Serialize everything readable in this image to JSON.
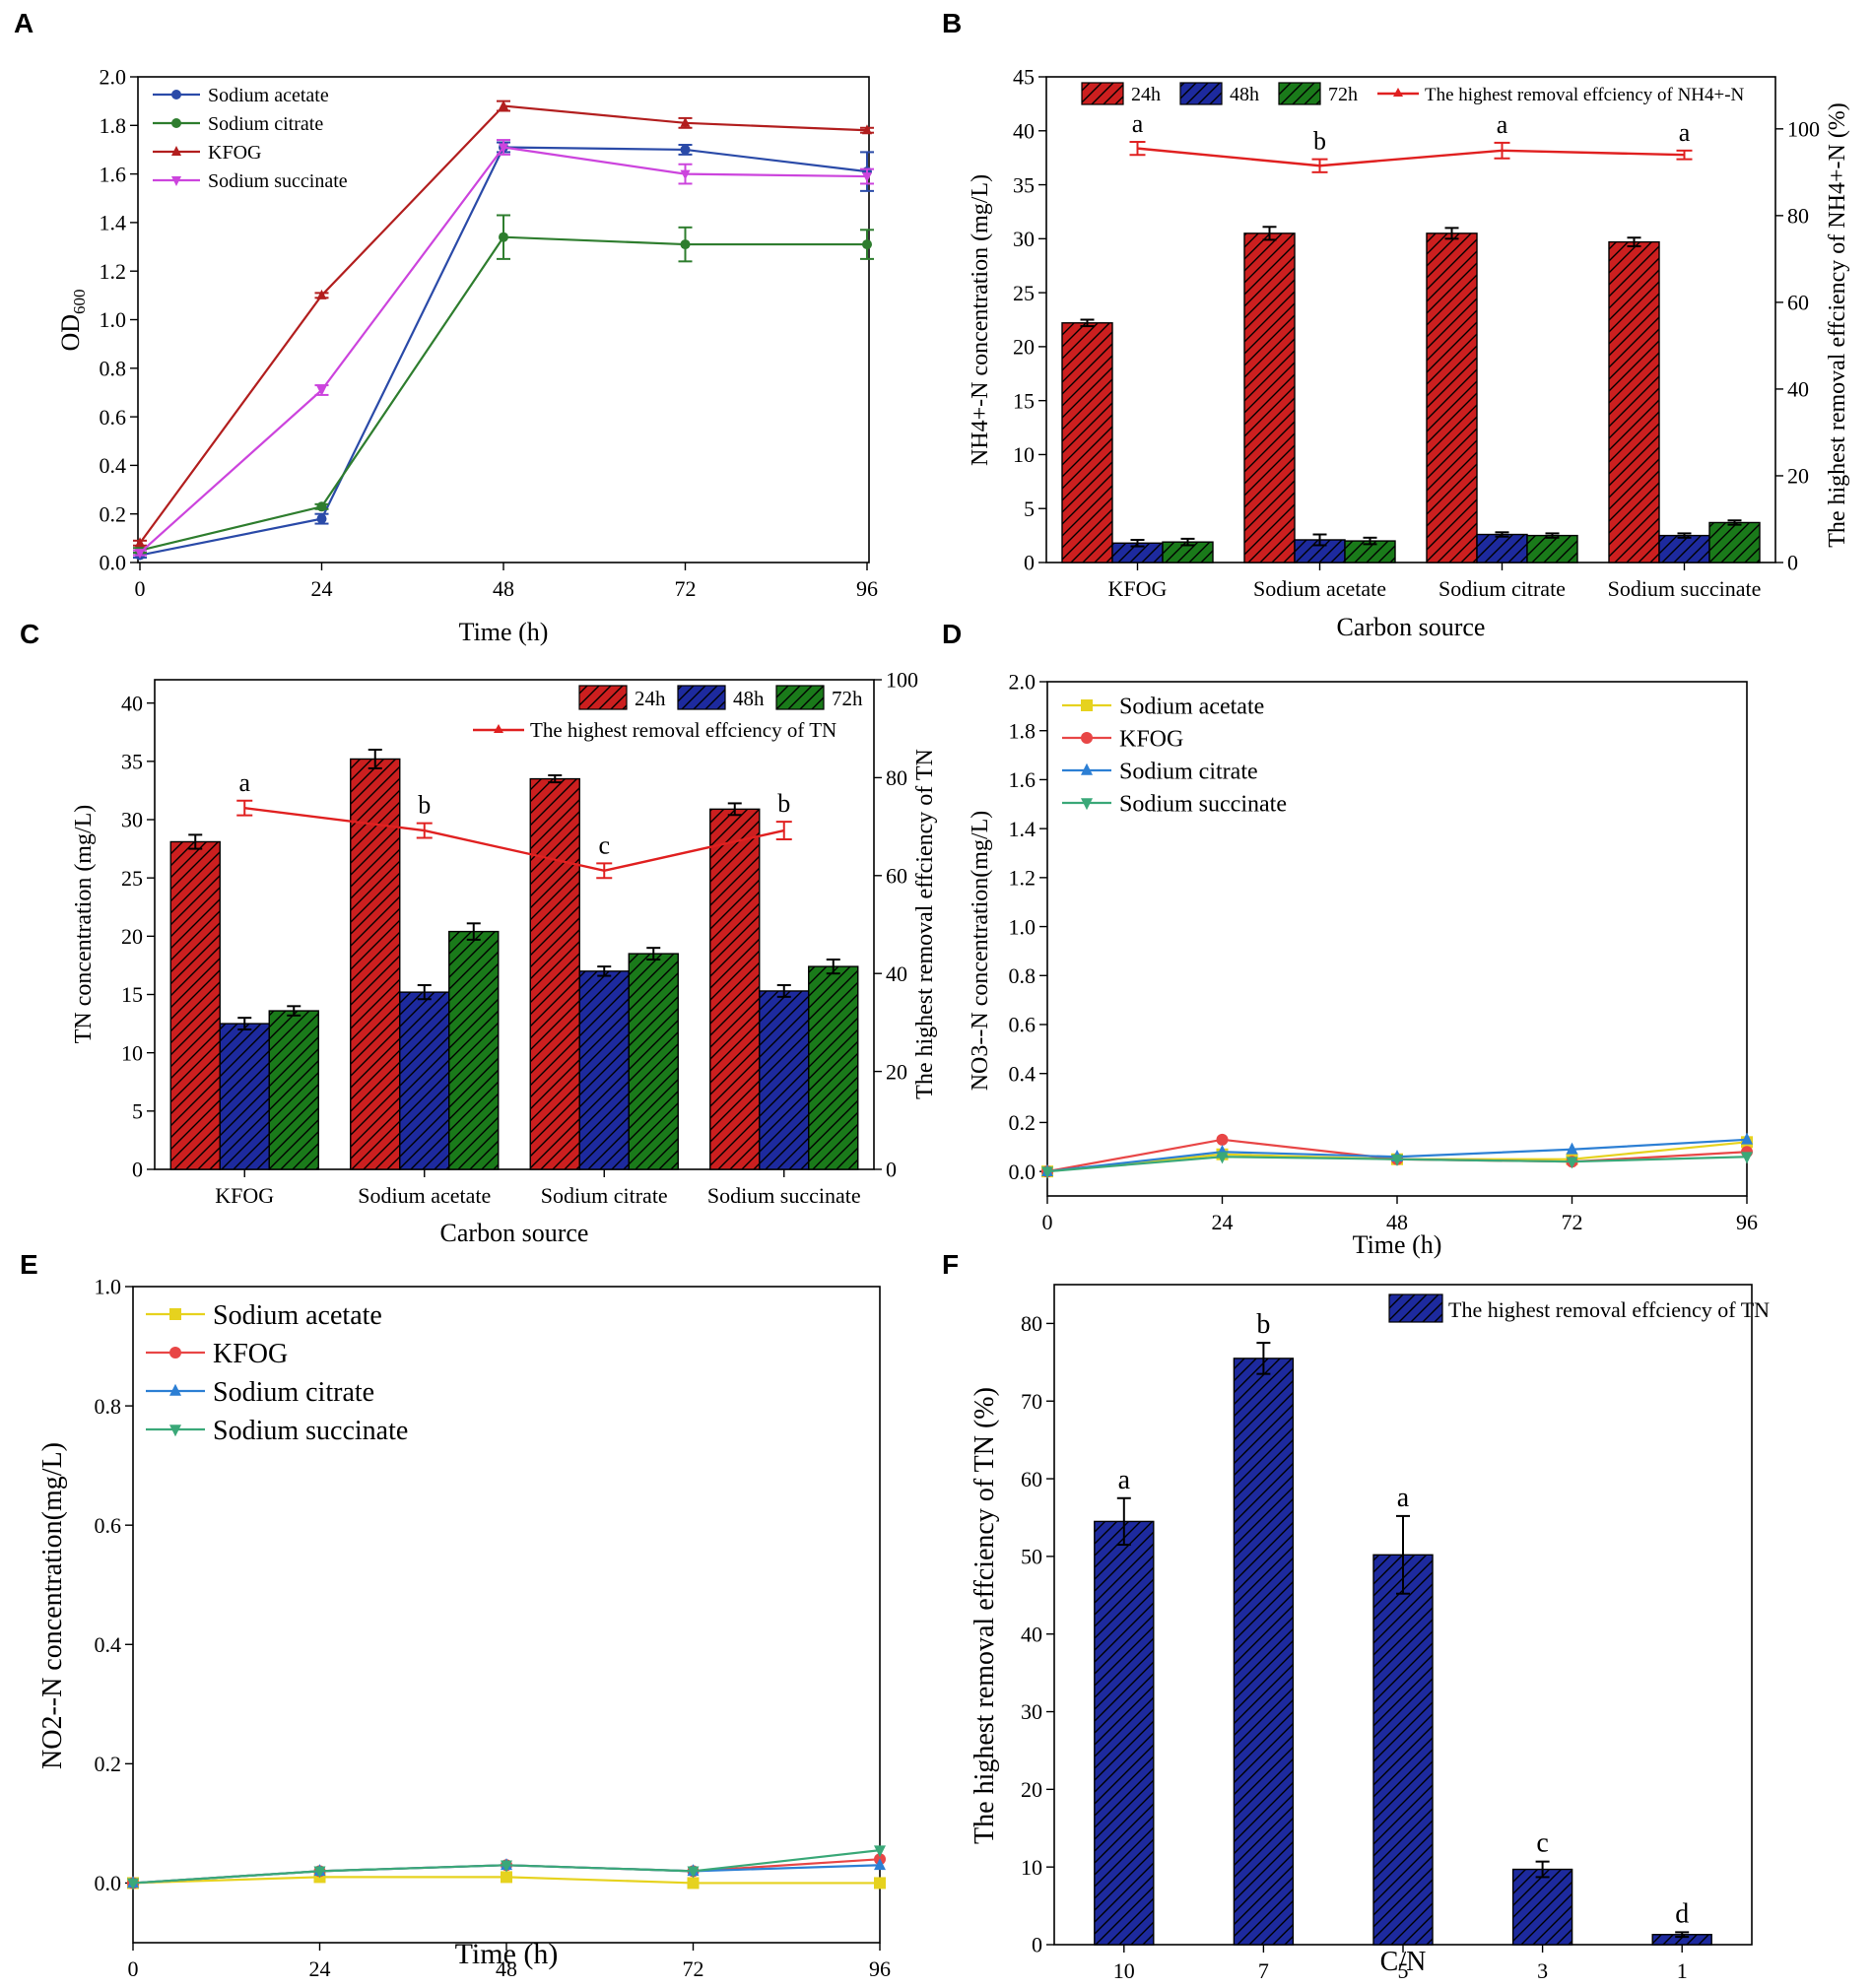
{
  "chart_data": [
    {
      "panel": "A",
      "type": "line",
      "xlabel": "Time (h)",
      "ylabel": "OD600",
      "ylabel_main": "OD",
      "ylabel_sub": "600",
      "xlim": [
        0,
        96
      ],
      "ylim": [
        0,
        2.0
      ],
      "xticks": [
        0,
        24,
        48,
        72,
        96
      ],
      "yticks": [
        0.0,
        0.2,
        0.4,
        0.6,
        0.8,
        1.0,
        1.2,
        1.4,
        1.6,
        1.8,
        2.0
      ],
      "x": [
        0,
        24,
        48,
        72,
        96
      ],
      "legend_position": "top-left",
      "series": [
        {
          "name": "Sodium acetate",
          "color": "#2a4aa8",
          "marker": "circle",
          "values": [
            0.03,
            0.18,
            1.71,
            1.7,
            1.61
          ],
          "errors": [
            0.01,
            0.02,
            0.02,
            0.02,
            0.08
          ]
        },
        {
          "name": "Sodium citrate",
          "color": "#2e7d2e",
          "marker": "circle",
          "values": [
            0.05,
            0.23,
            1.34,
            1.31,
            1.31
          ],
          "errors": [
            0.01,
            0.01,
            0.09,
            0.07,
            0.06
          ]
        },
        {
          "name": "KFOG",
          "color": "#b21e1e",
          "marker": "triangle",
          "values": [
            0.08,
            1.1,
            1.88,
            1.81,
            1.78
          ],
          "errors": [
            0.01,
            0.01,
            0.02,
            0.02,
            0.01
          ]
        },
        {
          "name": "Sodium succinate",
          "color": "#cc44dd",
          "marker": "triangle-down",
          "values": [
            0.04,
            0.71,
            1.71,
            1.6,
            1.59
          ],
          "errors": [
            0.01,
            0.02,
            0.03,
            0.04,
            0.03
          ]
        }
      ]
    },
    {
      "panel": "B",
      "type": "bar",
      "xlabel": "Carbon source",
      "ylabel": "NH4+-N concentration (mg/L)",
      "y2label": "The highest removal effciency of NH4+-N (%)",
      "categories": [
        "KFOG",
        "Sodium acetate",
        "Sodium citrate",
        "Sodium succinate"
      ],
      "ylim": [
        0,
        45
      ],
      "yticks": [
        0,
        5,
        10,
        15,
        20,
        25,
        30,
        35,
        40,
        45
      ],
      "y2lim": [
        0,
        112
      ],
      "y2ticks": [
        0,
        20,
        40,
        60,
        80,
        100
      ],
      "series": [
        {
          "name": "24h",
          "color": "#cc1f1f",
          "values": [
            22.2,
            30.5,
            30.5,
            29.7
          ],
          "errors": [
            0.3,
            0.6,
            0.5,
            0.4
          ]
        },
        {
          "name": "48h",
          "color": "#1d2a9e",
          "values": [
            1.8,
            2.1,
            2.6,
            2.5
          ],
          "errors": [
            0.3,
            0.5,
            0.2,
            0.2
          ]
        },
        {
          "name": "72h",
          "color": "#1a7a1a",
          "values": [
            1.9,
            2.0,
            2.5,
            3.7
          ],
          "errors": [
            0.3,
            0.3,
            0.2,
            0.2
          ]
        }
      ],
      "line": {
        "name": "The highest removal effciency of NH4+-N",
        "color": "#e02020",
        "values": [
          95.5,
          91.5,
          95.0,
          94.0
        ],
        "errors": [
          1.5,
          1.5,
          1.8,
          1.0
        ],
        "letters": [
          "a",
          "b",
          "a",
          "a"
        ]
      },
      "legend_position": "top"
    },
    {
      "panel": "C",
      "type": "bar",
      "xlabel": "Carbon source",
      "ylabel": "TN concentration (mg/L)",
      "y2label": "The highest removal effciency of TN",
      "categories": [
        "KFOG",
        "Sodium acetate",
        "Sodium citrate",
        "Sodium succinate"
      ],
      "ylim": [
        0,
        42
      ],
      "yticks": [
        0,
        5,
        10,
        15,
        20,
        25,
        30,
        35,
        40
      ],
      "y2lim": [
        0,
        100
      ],
      "y2ticks": [
        0,
        20,
        40,
        60,
        80,
        100
      ],
      "series": [
        {
          "name": "24h",
          "color": "#cc1f1f",
          "values": [
            28.1,
            35.2,
            33.5,
            30.9
          ],
          "errors": [
            0.6,
            0.8,
            0.3,
            0.5
          ]
        },
        {
          "name": "48h",
          "color": "#1d2a9e",
          "values": [
            12.5,
            15.2,
            17.0,
            15.3
          ],
          "errors": [
            0.5,
            0.6,
            0.4,
            0.5
          ]
        },
        {
          "name": "72h",
          "color": "#1a7a1a",
          "values": [
            13.6,
            20.4,
            18.5,
            17.4
          ],
          "errors": [
            0.4,
            0.7,
            0.5,
            0.6
          ]
        }
      ],
      "line": {
        "name": "The highest removal effciency of TN",
        "color": "#e02020",
        "values": [
          73.8,
          69.2,
          61.0,
          69.2
        ],
        "errors": [
          1.5,
          1.5,
          1.5,
          1.8
        ],
        "letters": [
          "a",
          "b",
          "c",
          "b"
        ]
      },
      "legend_position": "top-right"
    },
    {
      "panel": "D",
      "type": "line",
      "xlabel": "Time (h)",
      "ylabel": "NO3--N concentration(mg/L)",
      "xlim": [
        0,
        96
      ],
      "ylim": [
        -0.1,
        2.0
      ],
      "xticks": [
        0,
        24,
        48,
        72,
        96
      ],
      "yticks": [
        0.0,
        0.2,
        0.4,
        0.6,
        0.8,
        1.0,
        1.2,
        1.4,
        1.6,
        1.8,
        2.0
      ],
      "x": [
        0,
        24,
        48,
        72,
        96
      ],
      "legend_position": "top-left",
      "series": [
        {
          "name": "Sodium acetate",
          "color": "#e6d21e",
          "marker": "square",
          "values": [
            0.0,
            0.07,
            0.05,
            0.05,
            0.12
          ]
        },
        {
          "name": "KFOG",
          "color": "#e84646",
          "marker": "circle",
          "values": [
            0.0,
            0.13,
            0.05,
            0.04,
            0.08
          ]
        },
        {
          "name": "Sodium citrate",
          "color": "#2c7fd4",
          "marker": "triangle",
          "values": [
            0.0,
            0.08,
            0.06,
            0.09,
            0.13
          ]
        },
        {
          "name": "Sodium succinate",
          "color": "#3aa878",
          "marker": "triangle-down",
          "values": [
            0.0,
            0.06,
            0.05,
            0.04,
            0.06
          ]
        }
      ]
    },
    {
      "panel": "E",
      "type": "line",
      "xlabel": "Time (h)",
      "ylabel": "NO2--N concentration(mg/L)",
      "xlim": [
        0,
        96
      ],
      "ylim": [
        -0.1,
        1.0
      ],
      "xticks": [
        0,
        24,
        48,
        72,
        96
      ],
      "yticks": [
        0.0,
        0.2,
        0.4,
        0.6,
        0.8,
        1.0
      ],
      "x": [
        0,
        24,
        48,
        72,
        96
      ],
      "legend_position": "top-left",
      "series": [
        {
          "name": "Sodium acetate",
          "color": "#e6d21e",
          "marker": "square",
          "values": [
            0.0,
            0.01,
            0.01,
            0.0,
            0.0
          ]
        },
        {
          "name": "KFOG",
          "color": "#e84646",
          "marker": "circle",
          "values": [
            0.0,
            0.02,
            0.03,
            0.02,
            0.04
          ]
        },
        {
          "name": "Sodium citrate",
          "color": "#2c7fd4",
          "marker": "triangle",
          "values": [
            0.0,
            0.02,
            0.03,
            0.02,
            0.03
          ]
        },
        {
          "name": "Sodium succinate",
          "color": "#3aa878",
          "marker": "triangle-down",
          "values": [
            0.0,
            0.02,
            0.03,
            0.02,
            0.055
          ]
        }
      ]
    },
    {
      "panel": "F",
      "type": "bar",
      "xlabel": "C/N",
      "ylabel": "The highest removal effciency of TN (%)",
      "categories": [
        "10",
        "7",
        "5",
        "3",
        "1"
      ],
      "ylim": [
        0,
        85
      ],
      "yticks": [
        0,
        10,
        20,
        30,
        40,
        50,
        60,
        70,
        80
      ],
      "series": [
        {
          "name": "The highest removal effciency of TN",
          "color": "#1d2a9e",
          "values": [
            54.5,
            75.5,
            50.2,
            9.7,
            1.3
          ],
          "errors": [
            3.0,
            2.0,
            5.0,
            1.0,
            0.3
          ],
          "letters": [
            "a",
            "b",
            "a",
            "c",
            "d"
          ]
        }
      ],
      "legend_position": "top-right"
    }
  ],
  "panel_letters": [
    "A",
    "B",
    "C",
    "D",
    "E",
    "F"
  ]
}
